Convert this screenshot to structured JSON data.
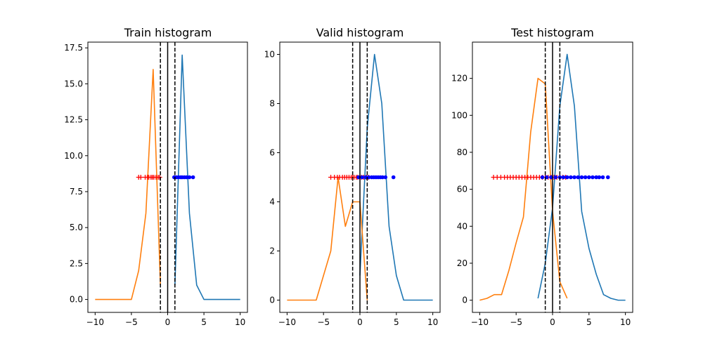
{
  "chart_data": [
    {
      "type": "line",
      "title": "Train histogram",
      "xlim": [
        -11,
        11
      ],
      "ylim": [
        -0.9,
        17.9
      ],
      "xticks": [
        -10,
        -5,
        0,
        5,
        10
      ],
      "xtick_labels": [
        "−10",
        "−5",
        "0",
        "5",
        "10"
      ],
      "yticks": [
        0,
        2.5,
        5,
        7.5,
        10,
        12.5,
        15,
        17.5
      ],
      "ytick_labels": [
        "0.0",
        "2.5",
        "5.0",
        "7.5",
        "10.0",
        "12.5",
        "15.0",
        "17.5"
      ],
      "grid": false,
      "series": [
        {
          "color": "#1f77b4",
          "x": [
            1,
            2,
            3,
            4,
            5,
            6,
            7,
            8,
            9,
            10
          ],
          "y": [
            1,
            17,
            6,
            1,
            0,
            0,
            0,
            0,
            0,
            0
          ]
        },
        {
          "color": "#ff7f0e",
          "x": [
            -10,
            -9,
            -8,
            -7,
            -6,
            -5,
            -4,
            -3,
            -2,
            -1
          ],
          "y": [
            0,
            0,
            0,
            0,
            0,
            0,
            2,
            6,
            16,
            1
          ]
        }
      ],
      "markers": {
        "y": 8.5,
        "negative": {
          "color": "#ff0000",
          "symbol": "+",
          "x": [
            -4.0,
            -3.7,
            -3.1,
            -2.8,
            -2.6,
            -2.3,
            -2.1,
            -1.9,
            -1.6,
            -1.3,
            -1.1
          ]
        },
        "positive": {
          "color": "#0000ff",
          "symbol": "o",
          "x": [
            0.9,
            1.2,
            1.5,
            1.8,
            2.0,
            2.3,
            2.6,
            3.0,
            3.5
          ]
        }
      },
      "vlines": [
        {
          "x": -1,
          "style": "dashed"
        },
        {
          "x": 0,
          "style": "solid"
        },
        {
          "x": 1,
          "style": "dashed"
        }
      ]
    },
    {
      "type": "line",
      "title": "Valid histogram",
      "xlim": [
        -11,
        11
      ],
      "ylim": [
        -0.5,
        10.5
      ],
      "xticks": [
        -10,
        -5,
        0,
        5,
        10
      ],
      "xtick_labels": [
        "−10",
        "−5",
        "0",
        "5",
        "10"
      ],
      "yticks": [
        0,
        2,
        4,
        6,
        8,
        10
      ],
      "ytick_labels": [
        "0",
        "2",
        "4",
        "6",
        "8",
        "10"
      ],
      "grid": false,
      "series": [
        {
          "color": "#1f77b4",
          "x": [
            0,
            1,
            2,
            3,
            4,
            5,
            6,
            7,
            8,
            9,
            10
          ],
          "y": [
            1,
            7,
            10,
            8,
            3,
            1,
            0,
            0,
            0,
            0,
            0
          ]
        },
        {
          "color": "#ff7f0e",
          "x": [
            -10,
            -9,
            -8,
            -7,
            -6,
            -5,
            -4,
            -3,
            -2,
            -1,
            0,
            1
          ],
          "y": [
            0,
            0,
            0,
            0,
            0,
            1,
            2,
            5,
            3,
            4,
            4,
            0
          ]
        }
      ],
      "markers": {
        "y": 5,
        "negative": {
          "color": "#ff0000",
          "symbol": "+",
          "x": [
            -4.0,
            -3.5,
            -3.1,
            -2.8,
            -2.4,
            -2.1,
            -1.8,
            -1.5,
            -1.2,
            -1.0,
            -0.8,
            -0.5,
            -0.3,
            0.2,
            0.5,
            0.9,
            1.2
          ]
        },
        "positive": {
          "color": "#0000ff",
          "symbol": "o",
          "x": [
            -0.2,
            0.3,
            0.8,
            1.2,
            1.6,
            1.9,
            2.2,
            2.5,
            2.8,
            3.1,
            3.5,
            4.6
          ]
        }
      },
      "vlines": [
        {
          "x": -1,
          "style": "dashed"
        },
        {
          "x": 0,
          "style": "solid"
        },
        {
          "x": 1,
          "style": "dashed"
        }
      ]
    },
    {
      "type": "line",
      "title": "Test histogram",
      "xlim": [
        -11,
        11
      ],
      "ylim": [
        -6.6,
        139.6
      ],
      "xticks": [
        -10,
        -5,
        0,
        5,
        10
      ],
      "xtick_labels": [
        "−10",
        "−5",
        "0",
        "5",
        "10"
      ],
      "yticks": [
        0,
        20,
        40,
        60,
        80,
        100,
        120
      ],
      "ytick_labels": [
        "0",
        "20",
        "40",
        "60",
        "80",
        "100",
        "120"
      ],
      "grid": false,
      "series": [
        {
          "color": "#1f77b4",
          "x": [
            -2,
            -1,
            0,
            1,
            2,
            3,
            4,
            5,
            6,
            7,
            8,
            9,
            10
          ],
          "y": [
            1,
            20,
            50,
            105,
            133,
            105,
            48,
            28,
            14,
            3,
            1,
            0,
            0
          ]
        },
        {
          "color": "#ff7f0e",
          "x": [
            -10,
            -9,
            -8,
            -7,
            -6,
            -5,
            -4,
            -3,
            -2,
            -1,
            0,
            1,
            2
          ],
          "y": [
            0,
            1,
            3,
            3,
            16,
            31,
            45,
            91,
            120,
            117,
            48,
            10,
            1
          ]
        }
      ],
      "markers": {
        "y": 66.5,
        "negative": {
          "color": "#ff0000",
          "symbol": "+",
          "x": [
            -8.1,
            -7.6,
            -7.1,
            -6.6,
            -6.2,
            -5.8,
            -5.4,
            -5.0,
            -4.6,
            -4.2,
            -3.8,
            -3.4,
            -3.0,
            -2.6,
            -2.2,
            -1.8,
            -1.4,
            -1.0,
            -0.6,
            -0.2,
            0.2,
            0.6,
            1.0,
            1.4,
            1.8
          ]
        },
        "positive": {
          "color": "#0000ff",
          "symbol": "o",
          "x": [
            -1.4,
            -0.8,
            -0.2,
            0.4,
            1.0,
            1.5,
            2.0,
            2.5,
            3.0,
            3.5,
            4.0,
            4.5,
            5.0,
            5.5,
            6.0,
            6.4,
            6.9,
            7.6
          ]
        }
      },
      "vlines": [
        {
          "x": -1,
          "style": "dashed"
        },
        {
          "x": 0,
          "style": "solid"
        },
        {
          "x": 1,
          "style": "dashed"
        }
      ]
    }
  ]
}
